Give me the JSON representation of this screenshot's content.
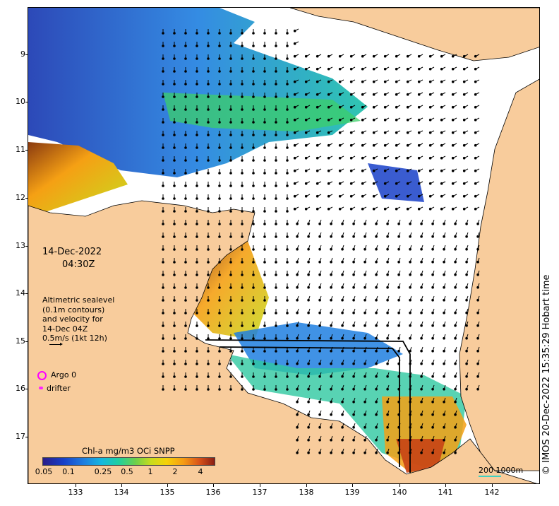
{
  "map": {
    "date": "14-Dec-2022",
    "time": "04:30Z",
    "legend_lines": [
      "Altimetric sealevel",
      "(0.1m contours)",
      "and velocity for",
      "14-Dec 04Z",
      "0.5m/s (1kt 12h)"
    ],
    "argo_label": "Argo 0",
    "drifter_label": "drifter",
    "colorbar_title": "Chl-a mg/m3 OCi SNPP",
    "colorbar_ticks": [
      "0.05",
      "0.1",
      "0.25",
      "0.5",
      "1",
      "2",
      "4"
    ],
    "scale_label": "200  1000m",
    "copyright": "© IMOS 20-Dec-2022 15:35:29 Hobart time",
    "lat_labels": [
      "9",
      "10",
      "11",
      "12",
      "13",
      "14",
      "15",
      "16",
      "17"
    ],
    "lon_labels": [
      "133",
      "134",
      "135",
      "136",
      "137",
      "138",
      "139",
      "140",
      "141",
      "142"
    ],
    "colors": {
      "land": "#f8cc9c",
      "ocean": "#ffffff",
      "argo": "#ff00ff",
      "scale_bar": "#40d0c0"
    },
    "lat_range": [
      -8.2,
      -17.9
    ],
    "lon_range": [
      132.0,
      143.0
    ]
  }
}
